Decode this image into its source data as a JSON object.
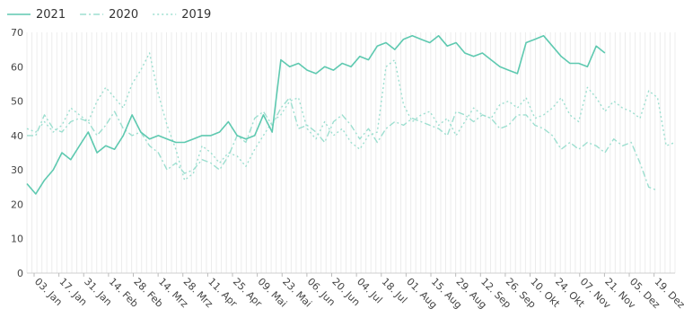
{
  "chart_data": {
    "type": "line",
    "title": "",
    "xlabel": "",
    "ylabel": "",
    "ylim": [
      0,
      70
    ],
    "y_ticks": [
      0,
      10,
      20,
      30,
      40,
      50,
      60,
      70
    ],
    "x_tick_labels": [
      "03. Jan",
      "17. Jan",
      "31. Jan",
      "14. Feb",
      "28. Feb",
      "14. Mrz",
      "28. Mrz",
      "11. Apr",
      "25. Apr",
      "09. Mai",
      "23. Mai",
      "06. Jun",
      "20. Jun",
      "04. Jul",
      "18. Jul",
      "01. Aug",
      "15. Aug",
      "29. Aug",
      "12. Sep",
      "26. Sep",
      "10. Okt",
      "24. Okt",
      "07. Nov",
      "21. Nov",
      "05. Dez",
      "19. Dez"
    ],
    "grid": "vertical",
    "legend_position": "top-left",
    "series": [
      {
        "name": "2021",
        "color": "#5ec9b0",
        "style": "solid",
        "x_start_index": 0,
        "values": [
          26,
          23,
          27,
          30,
          35,
          33,
          37,
          41,
          35,
          37,
          36,
          40,
          46,
          41,
          39,
          40,
          39,
          38,
          38,
          39,
          40,
          40,
          41,
          44,
          40,
          39,
          40,
          46,
          41,
          62,
          60,
          61,
          59,
          58,
          60,
          59,
          61,
          60,
          63,
          62,
          66,
          67,
          65,
          68,
          69,
          68,
          67,
          69,
          66,
          67,
          64,
          63,
          64,
          62,
          60,
          59,
          58,
          67,
          68,
          69,
          66,
          63,
          61,
          61,
          60,
          66,
          64
        ]
      },
      {
        "name": "2020",
        "color": "#9ddfd0",
        "style": "dashdot",
        "x_start_index": 0,
        "values": [
          40,
          40,
          46,
          42,
          41,
          44,
          45,
          44,
          40,
          43,
          47,
          42,
          40,
          41,
          37,
          35,
          30,
          32,
          29,
          30,
          33,
          32,
          30,
          34,
          40,
          38,
          45,
          47,
          43,
          48,
          51,
          42,
          43,
          41,
          38,
          44,
          46,
          43,
          39,
          42,
          38,
          42,
          44,
          43,
          45,
          44,
          43,
          42,
          40,
          47,
          46,
          44,
          46,
          45,
          42,
          43,
          46,
          46,
          43,
          42,
          40,
          36,
          38,
          36,
          38,
          37,
          35,
          39,
          37,
          38,
          32,
          25,
          24
        ]
      },
      {
        "name": "2019",
        "color": "#9ddfd0",
        "style": "dotted",
        "x_start_index": 0,
        "values": [
          42,
          41,
          44,
          41,
          43,
          48,
          46,
          44,
          50,
          54,
          51,
          48,
          55,
          59,
          64,
          52,
          43,
          36,
          27,
          29,
          37,
          35,
          32,
          35,
          34,
          31,
          36,
          40,
          44,
          46,
          50,
          51,
          42,
          39,
          44,
          40,
          42,
          38,
          36,
          40,
          41,
          60,
          62,
          49,
          44,
          46,
          47,
          43,
          45,
          40,
          44,
          48,
          46,
          45,
          49,
          50,
          48,
          51,
          45,
          46,
          48,
          51,
          46,
          44,
          54,
          51,
          47,
          50,
          48,
          47,
          45,
          53,
          51,
          37,
          38
        ]
      }
    ]
  }
}
